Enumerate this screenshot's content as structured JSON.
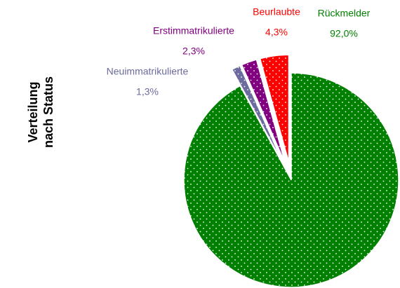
{
  "chart_data": {
    "type": "pie",
    "title": [
      "Verteilung",
      "nach Status"
    ],
    "categories": [
      "Rückmelder",
      "Neuimmatrikulierte",
      "Erstimmatrikulierte",
      "Beurlaubte"
    ],
    "values": [
      92.0,
      1.3,
      2.3,
      4.3
    ],
    "value_labels": [
      "92,0%",
      "1,3%",
      "2,3%",
      "4,3%"
    ],
    "colors": [
      "#008000",
      "#6b6b9e",
      "#800080",
      "#ff0000"
    ]
  }
}
